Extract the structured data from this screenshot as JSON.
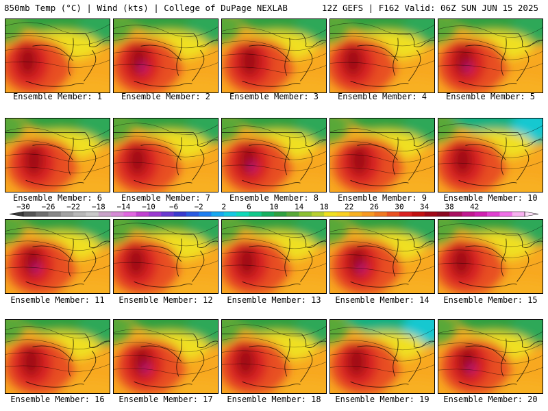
{
  "header": {
    "left": "850mb Temp (°C) | Wind (kts) | College of DuPage NEXLAB",
    "right": "12Z GEFS | F162 Valid: 06Z SUN JUN 15 2025"
  },
  "members": [
    "Ensemble Member: 1",
    "Ensemble Member: 2",
    "Ensemble Member: 3",
    "Ensemble Member: 4",
    "Ensemble Member: 5",
    "Ensemble Member: 6",
    "Ensemble Member: 7",
    "Ensemble Member: 8",
    "Ensemble Member: 9",
    "Ensemble Member: 10",
    "Ensemble Member: 11",
    "Ensemble Member: 12",
    "Ensemble Member: 13",
    "Ensemble Member: 14",
    "Ensemble Member: 15",
    "Ensemble Member: 16",
    "Ensemble Member: 17",
    "Ensemble Member: 18",
    "Ensemble Member: 19",
    "Ensemble Member: 20"
  ],
  "colorbar": {
    "labels": [
      "−30",
      "−26",
      "−22",
      "−18",
      "−14",
      "−10",
      "−6",
      "−2",
      "2",
      "6",
      "10",
      "14",
      "18",
      "22",
      "26",
      "30",
      "34",
      "38",
      "42"
    ],
    "colors": [
      "#545454",
      "#6e6e6e",
      "#888888",
      "#a2a2a2",
      "#b8b8b8",
      "#c9c9c9",
      "#c8a2c8",
      "#d68ad6",
      "#e066e0",
      "#c040d0",
      "#9a3ad0",
      "#6a3ad0",
      "#3a3acd",
      "#2a5ae0",
      "#1e7ef0",
      "#18a8f0",
      "#16c8e0",
      "#10d8b8",
      "#12c88a",
      "#18b060",
      "#30a040",
      "#58a838",
      "#8cc034",
      "#b8d030",
      "#f0e020",
      "#fad020",
      "#f8b020",
      "#f89820",
      "#f07820",
      "#e85020",
      "#d82020",
      "#c01010",
      "#a00818",
      "#8a0820",
      "#a81060",
      "#c01890",
      "#d020b0",
      "#e040d0",
      "#f070e8",
      "#f8b0f0"
    ]
  }
}
